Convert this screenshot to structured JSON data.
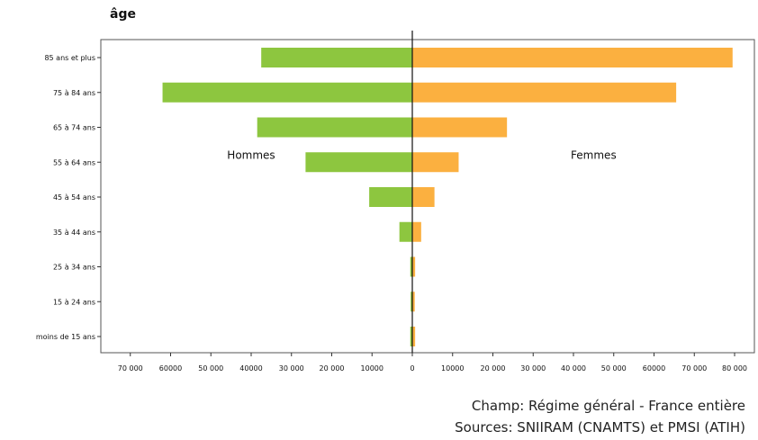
{
  "chart_data": {
    "type": "bar",
    "orientation": "horizontal-diverging",
    "ylabel": "âge",
    "categories": [
      "85 ans et plus",
      "75 à 84 ans",
      "65 à 74 ans",
      "55 à 64 ans",
      "45 à 54 ans",
      "35 à 44 ans",
      "25 à 34 ans",
      "15 à 24 ans",
      "moins de 15 ans"
    ],
    "series": [
      {
        "name": "Hommes",
        "color": "#8dc63f",
        "direction": "left",
        "values": [
          37500,
          62000,
          38500,
          26500,
          10700,
          3200,
          500,
          400,
          500
        ]
      },
      {
        "name": "Femmes",
        "color": "#fbb040",
        "direction": "right",
        "values": [
          79500,
          65500,
          23500,
          11500,
          5500,
          2200,
          700,
          600,
          700
        ]
      }
    ],
    "xlim": [
      -80000,
      80000
    ],
    "xticks": [
      {
        "value": -70000,
        "label": "70 000"
      },
      {
        "value": -60000,
        "label": "60000"
      },
      {
        "value": -50000,
        "label": "50 000"
      },
      {
        "value": -40000,
        "label": "40000"
      },
      {
        "value": -30000,
        "label": "30 000"
      },
      {
        "value": -20000,
        "label": "20 000"
      },
      {
        "value": -10000,
        "label": "10000"
      },
      {
        "value": 0,
        "label": "0"
      },
      {
        "value": 10000,
        "label": "10000"
      },
      {
        "value": 20000,
        "label": "20 000"
      },
      {
        "value": 30000,
        "label": "30 000"
      },
      {
        "value": 40000,
        "label": "40 000"
      },
      {
        "value": 50000,
        "label": "50 000"
      },
      {
        "value": 60000,
        "label": "60000"
      },
      {
        "value": 70000,
        "label": "70 000"
      },
      {
        "value": 80000,
        "label": "80 000"
      }
    ],
    "annotations": [
      {
        "text": "Hommes",
        "x": -40000,
        "category": "55 à 64 ans"
      },
      {
        "text": "Femmes",
        "x": 45000,
        "category": "55 à 64 ans"
      }
    ],
    "grid": false
  },
  "footer": {
    "line1": "Champ: Régime général - France entière",
    "line2": "Sources: SNIIRAM (CNAMTS) et PMSI (ATIH)"
  }
}
